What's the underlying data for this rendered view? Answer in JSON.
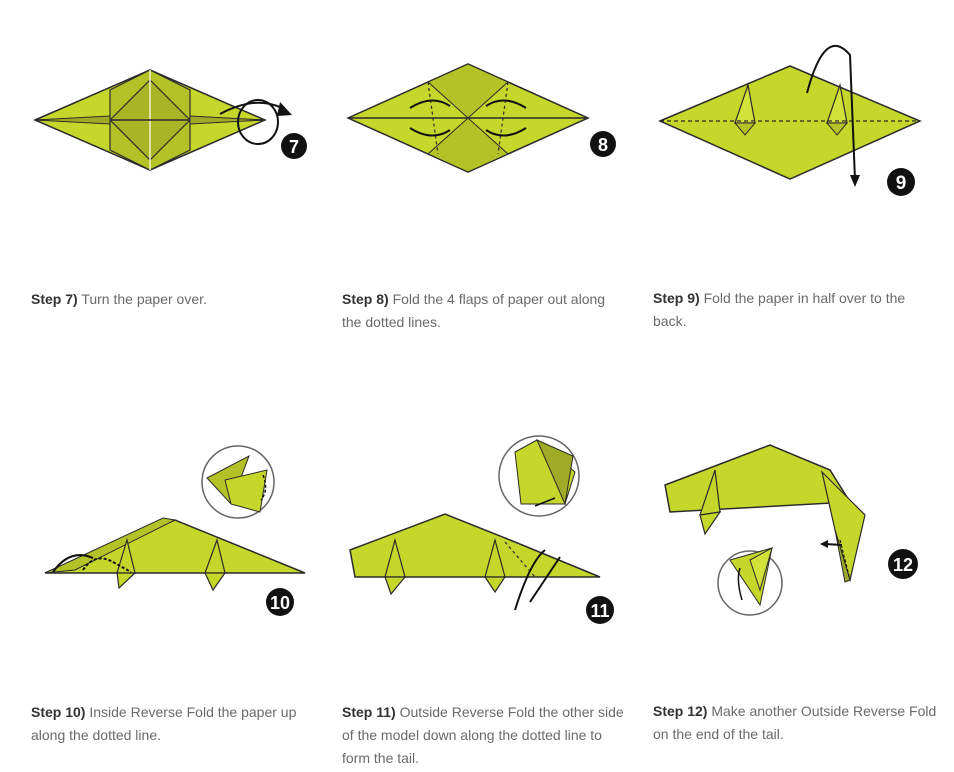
{
  "colors": {
    "paper_light": "#c5d72b",
    "paper_mid": "#b3c227",
    "paper_dark": "#9fab26",
    "outline": "#2b2b2b",
    "badge": "#111111",
    "caption_text": "#6a6a6a",
    "caption_label": "#333333"
  },
  "steps": [
    {
      "number": "7",
      "label": "Step 7)",
      "text": "Turn the paper over."
    },
    {
      "number": "8",
      "label": "Step 8)",
      "text": "Fold the 4 flaps of paper out along the dotted lines."
    },
    {
      "number": "9",
      "label": "Step 9)",
      "text": "Fold the paper in half over to the back."
    },
    {
      "number": "10",
      "label": "Step 10)",
      "text": "Inside Reverse Fold the paper up along the dotted line."
    },
    {
      "number": "11",
      "label": "Step 11)",
      "text": "Outside Reverse Fold the other side of the model down along the dotted line to form the tail."
    },
    {
      "number": "12",
      "label": "Step 12)",
      "text": "Make another Outside Reverse Fold on the end of the tail."
    }
  ]
}
